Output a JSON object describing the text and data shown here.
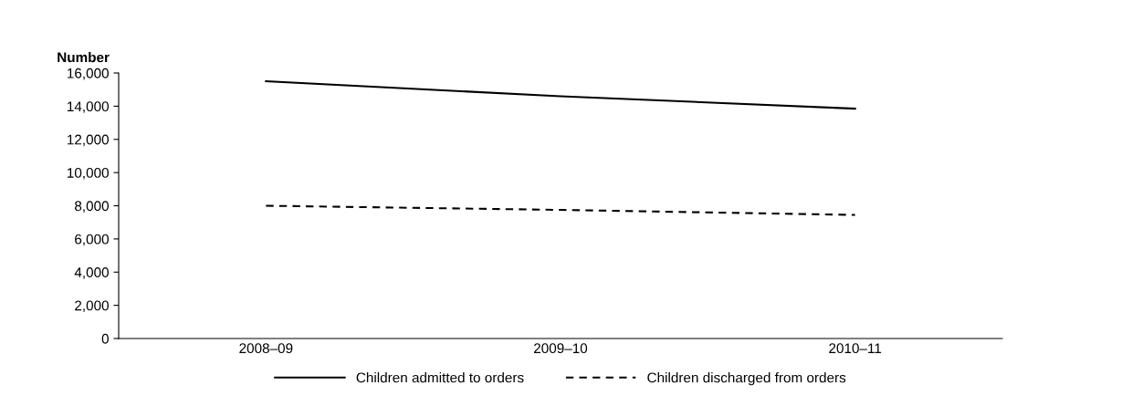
{
  "chart_data": {
    "type": "line",
    "ylabel": "Number",
    "categories": [
      "2008–09",
      "2009–10",
      "2010–11"
    ],
    "series": [
      {
        "name": "Children admitted to orders",
        "color": "#000000",
        "line_style": "solid",
        "values": [
          15500,
          14600,
          13850
        ]
      },
      {
        "name": "Children discharged from orders",
        "color": "#000000",
        "line_style": "dashed",
        "values": [
          8000,
          7750,
          7450
        ]
      }
    ],
    "ylim": [
      0,
      16000
    ],
    "yticks": [
      {
        "value": 0,
        "label": "0"
      },
      {
        "value": 2000,
        "label": "2,000"
      },
      {
        "value": 4000,
        "label": "4,000"
      },
      {
        "value": 6000,
        "label": "6,000"
      },
      {
        "value": 8000,
        "label": "8,000"
      },
      {
        "value": 10000,
        "label": "10,000"
      },
      {
        "value": 12000,
        "label": "12,000"
      },
      {
        "value": 14000,
        "label": "14,000"
      },
      {
        "value": 16000,
        "label": "16,000"
      }
    ],
    "grid": false,
    "legend": "bottom",
    "marker": "none"
  }
}
